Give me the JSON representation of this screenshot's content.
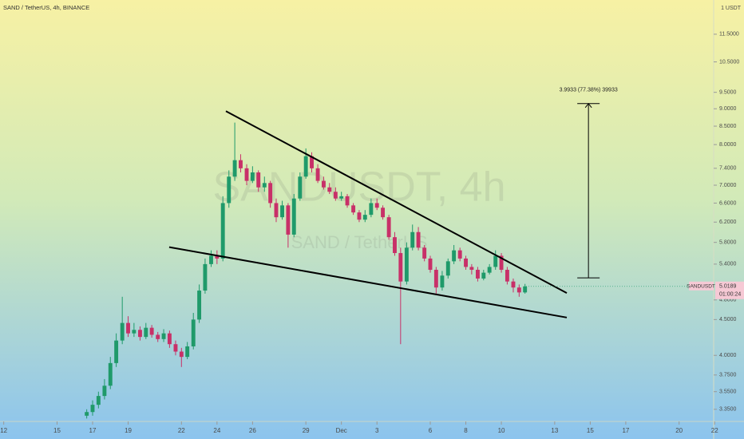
{
  "chart_data": {
    "type": "candlestick",
    "title": "SAND / TetherUS, 4h, BINANCE",
    "watermark": "SANDUSDT, 4h",
    "watermark_subtitle": "SAND / TetherUS",
    "y_unit": "1 USDT",
    "log_scale": true,
    "grid": false,
    "ylim": [
      3.27,
      12.87
    ],
    "yticks": [
      {
        "value": 3.35,
        "label": "3.3500"
      },
      {
        "value": 3.55,
        "label": "3.5500"
      },
      {
        "value": 3.75,
        "label": "3.7500"
      },
      {
        "value": 4,
        "label": "4.0000"
      },
      {
        "value": 4.5,
        "label": "4.5000"
      },
      {
        "value": 4.8,
        "label": "4.8000"
      },
      {
        "value": 5.4,
        "label": "5.4000"
      },
      {
        "value": 5.8,
        "label": "5.8000"
      },
      {
        "value": 6.2,
        "label": "6.2000"
      },
      {
        "value": 6.6,
        "label": "6.6000"
      },
      {
        "value": 7,
        "label": "7.0000"
      },
      {
        "value": 7.4,
        "label": "7.4000"
      },
      {
        "value": 8,
        "label": "8.0000"
      },
      {
        "value": 8.5,
        "label": "8.5000"
      },
      {
        "value": 9,
        "label": "9.0000"
      },
      {
        "value": 9.5,
        "label": "9.5000"
      },
      {
        "value": 10.5,
        "label": "10.5000"
      },
      {
        "value": 11.5,
        "label": "11.5000"
      }
    ],
    "xlim": [
      11.79,
      51.9
    ],
    "xticks": [
      12,
      15,
      17,
      19,
      22,
      24,
      26,
      29,
      {
        "value": 31,
        "label": "Dec"
      },
      {
        "value": 33,
        "label": "3"
      },
      {
        "value": 36,
        "label": "6"
      },
      {
        "value": 38,
        "label": "8"
      },
      {
        "value": 40,
        "label": "10"
      },
      {
        "value": 43,
        "label": "13"
      },
      {
        "value": 45,
        "label": "15"
      },
      {
        "value": 47,
        "label": "17"
      },
      {
        "value": 50,
        "label": "20"
      },
      {
        "value": 52,
        "label": "22"
      }
    ],
    "up_color": "#1f9a6a",
    "down_color": "#c83068",
    "candles": {
      "x": [
        16.67,
        17,
        17.33,
        17.67,
        18,
        18.33,
        18.67,
        19,
        19.33,
        19.67,
        20,
        20.33,
        20.67,
        21,
        21.33,
        21.67,
        22,
        22.33,
        22.67,
        23,
        23.33,
        23.67,
        24,
        24.33,
        24.67,
        25,
        25.33,
        25.67,
        26,
        26.33,
        26.67,
        27,
        27.33,
        27.67,
        28,
        28.33,
        28.67,
        29,
        29.33,
        29.67,
        30,
        30.33,
        30.67,
        31,
        31.33,
        31.67,
        32,
        32.33,
        32.67,
        33,
        33.33,
        33.67,
        34,
        34.33,
        34.67,
        35,
        35.33,
        35.67,
        36,
        36.33,
        36.67,
        37,
        37.33,
        37.67,
        38,
        38.33,
        38.67,
        39,
        39.33,
        39.67,
        40,
        40.33,
        40.67,
        41,
        41.33
      ],
      "open": [
        3.28,
        3.32,
        3.4,
        3.5,
        3.62,
        3.9,
        4.2,
        4.45,
        4.3,
        4.35,
        4.25,
        4.38,
        4.28,
        4.22,
        4.3,
        4.15,
        4.05,
        3.98,
        4.12,
        4.5,
        4.95,
        5.4,
        5.55,
        5.5,
        6.6,
        7.2,
        7.6,
        7.4,
        7.1,
        7.3,
        6.95,
        7.05,
        6.6,
        6.3,
        6.55,
        5.95,
        6.7,
        7.2,
        7.7,
        7.4,
        7.1,
        6.95,
        6.85,
        6.7,
        6.75,
        6.55,
        6.4,
        6.25,
        6.35,
        6.6,
        6.5,
        6.3,
        5.9,
        5.6,
        5.1,
        5.7,
        6.0,
        5.7,
        5.5,
        5.3,
        5.0,
        5.2,
        5.45,
        5.65,
        5.5,
        5.35,
        5.3,
        5.15,
        5.25,
        5.35,
        5.55,
        5.3,
        5.1,
        5.0,
        4.92
      ],
      "high": [
        3.35,
        3.45,
        3.55,
        3.7,
        3.98,
        4.3,
        4.85,
        4.55,
        4.45,
        4.4,
        4.45,
        4.42,
        4.32,
        4.36,
        4.34,
        4.2,
        4.1,
        4.18,
        4.6,
        5.05,
        5.5,
        5.65,
        5.65,
        6.75,
        7.35,
        8.6,
        7.75,
        7.5,
        7.45,
        7.35,
        7.2,
        7.1,
        6.7,
        6.65,
        6.6,
        6.8,
        7.3,
        7.9,
        7.8,
        7.5,
        7.2,
        7.05,
        6.95,
        6.85,
        6.8,
        6.6,
        6.45,
        6.45,
        6.7,
        6.7,
        6.55,
        6.35,
        6.0,
        5.7,
        5.8,
        6.15,
        6.1,
        5.75,
        5.55,
        5.35,
        5.28,
        5.5,
        5.75,
        5.7,
        5.55,
        5.4,
        5.35,
        5.3,
        5.4,
        5.65,
        5.6,
        5.35,
        5.15,
        5.05,
        5.06
      ],
      "low": [
        3.25,
        3.28,
        3.36,
        3.46,
        3.58,
        3.85,
        4.15,
        4.25,
        4.25,
        4.2,
        4.22,
        4.24,
        4.18,
        4.18,
        4.1,
        4.0,
        3.85,
        3.95,
        4.08,
        4.45,
        4.9,
        5.35,
        5.4,
        5.45,
        6.5,
        7.1,
        7.3,
        7.0,
        7.05,
        6.85,
        6.85,
        6.5,
        6.2,
        6.25,
        5.7,
        5.9,
        6.65,
        7.15,
        7.3,
        7.05,
        6.9,
        6.8,
        6.65,
        6.65,
        6.5,
        6.35,
        6.2,
        6.2,
        6.3,
        6.45,
        6.25,
        5.85,
        5.55,
        4.15,
        5.05,
        5.65,
        5.65,
        5.45,
        5.25,
        4.9,
        4.95,
        5.15,
        5.4,
        5.45,
        5.3,
        5.22,
        5.1,
        5.12,
        5.22,
        5.3,
        5.25,
        5.05,
        4.92,
        4.85,
        4.9
      ],
      "close": [
        3.32,
        3.4,
        3.5,
        3.62,
        3.9,
        4.2,
        4.45,
        4.3,
        4.35,
        4.25,
        4.38,
        4.28,
        4.22,
        4.3,
        4.15,
        4.05,
        3.98,
        4.12,
        4.5,
        4.95,
        5.4,
        5.55,
        5.5,
        6.6,
        7.2,
        7.6,
        7.4,
        7.1,
        7.3,
        6.95,
        7.05,
        6.6,
        6.3,
        6.55,
        5.95,
        6.7,
        7.2,
        7.7,
        7.4,
        7.1,
        6.95,
        6.85,
        6.7,
        6.75,
        6.55,
        6.4,
        6.25,
        6.35,
        6.6,
        6.5,
        6.3,
        5.9,
        5.6,
        5.1,
        5.7,
        6.0,
        5.7,
        5.5,
        5.3,
        5.0,
        5.2,
        5.45,
        5.65,
        5.5,
        5.35,
        5.3,
        5.15,
        5.25,
        5.35,
        5.55,
        5.3,
        5.1,
        5.0,
        4.92,
        5.0189
      ]
    },
    "last_price": {
      "symbol": "SANDUSDT",
      "countdown": "01:00:24"
    },
    "drawings": {
      "color": "#000000",
      "trendlines": [
        {
          "x": [
            24.5,
            43.68
          ],
          "y": [
            8.93,
            4.91
          ]
        },
        {
          "x": [
            21.31,
            43.68
          ],
          "y": [
            5.71,
            4.53
          ]
        }
      ],
      "measure": {
        "x": 44.9,
        "y": [
          5.1607,
          9.154
        ],
        "label": "3.9933 (77.38%) 39933"
      }
    }
  }
}
